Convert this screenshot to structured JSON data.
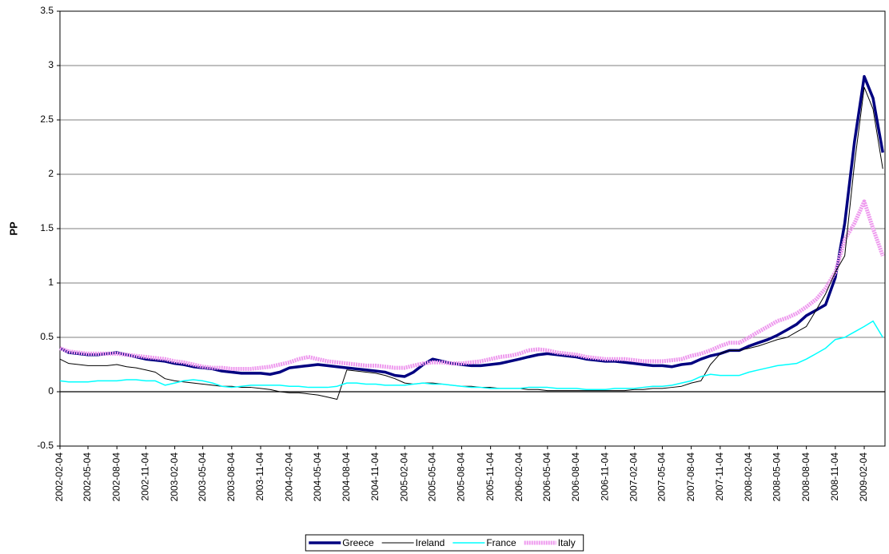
{
  "chart_data": {
    "type": "line",
    "ylabel": "PP",
    "x": [
      "2002-02-04",
      "2002-03-04",
      "2002-04-04",
      "2002-05-04",
      "2002-06-04",
      "2002-07-04",
      "2002-08-04",
      "2002-09-04",
      "2002-10-04",
      "2002-11-04",
      "2002-12-04",
      "2003-01-04",
      "2003-02-04",
      "2003-03-04",
      "2003-04-04",
      "2003-05-04",
      "2003-06-04",
      "2003-07-04",
      "2003-08-04",
      "2003-09-04",
      "2003-10-04",
      "2003-11-04",
      "2003-12-04",
      "2004-01-04",
      "2004-02-04",
      "2004-03-04",
      "2004-04-04",
      "2004-05-04",
      "2004-06-04",
      "2004-07-04",
      "2004-08-04",
      "2004-09-04",
      "2004-10-04",
      "2004-11-04",
      "2004-12-04",
      "2005-01-04",
      "2005-02-04",
      "2005-03-04",
      "2005-04-04",
      "2005-05-04",
      "2005-06-04",
      "2005-07-04",
      "2005-08-04",
      "2005-09-04",
      "2005-10-04",
      "2005-11-04",
      "2005-12-04",
      "2006-01-04",
      "2006-02-04",
      "2006-03-04",
      "2006-04-04",
      "2006-05-04",
      "2006-06-04",
      "2006-07-04",
      "2006-08-04",
      "2006-09-04",
      "2006-10-04",
      "2006-11-04",
      "2006-12-04",
      "2007-01-04",
      "2007-02-04",
      "2007-03-04",
      "2007-04-04",
      "2007-05-04",
      "2007-06-04",
      "2007-07-04",
      "2007-08-04",
      "2007-09-04",
      "2007-10-04",
      "2007-11-04",
      "2007-12-04",
      "2008-01-04",
      "2008-02-04",
      "2008-03-04",
      "2008-04-04",
      "2008-05-04",
      "2008-06-04",
      "2008-07-04",
      "2008-08-04",
      "2008-09-04",
      "2008-10-04",
      "2008-11-04",
      "2008-12-04",
      "2009-01-04",
      "2009-02-04",
      "2009-03-04",
      "2009-04-04"
    ],
    "xlim": [
      "2002-02-04",
      "2009-04-11"
    ],
    "xticks": [
      "2002-02-04",
      "2002-05-04",
      "2002-08-04",
      "2002-11-04",
      "2003-02-04",
      "2003-05-04",
      "2003-08-04",
      "2003-11-04",
      "2004-02-04",
      "2004-05-04",
      "2004-08-04",
      "2004-11-04",
      "2005-02-04",
      "2005-05-04",
      "2005-08-04",
      "2005-11-04",
      "2006-02-04",
      "2006-05-04",
      "2006-08-04",
      "2006-11-04",
      "2007-02-04",
      "2007-05-04",
      "2007-08-04",
      "2007-11-04",
      "2008-02-04",
      "2008-05-04",
      "2008-08-04",
      "2008-11-04",
      "2009-02-04"
    ],
    "ylim": [
      -0.5,
      3.5
    ],
    "yticks": [
      -0.5,
      0,
      0.5,
      1,
      1.5,
      2,
      2.5,
      3,
      3.5
    ],
    "grid": true,
    "legend": "bottom",
    "series": [
      {
        "name": "Greece",
        "color": "#000080",
        "values": [
          0.4,
          0.36,
          0.35,
          0.34,
          0.34,
          0.35,
          0.36,
          0.34,
          0.32,
          0.3,
          0.29,
          0.28,
          0.26,
          0.25,
          0.23,
          0.22,
          0.21,
          0.19,
          0.18,
          0.17,
          0.17,
          0.17,
          0.16,
          0.18,
          0.22,
          0.23,
          0.24,
          0.25,
          0.24,
          0.23,
          0.22,
          0.21,
          0.2,
          0.19,
          0.18,
          0.15,
          0.14,
          0.18,
          0.25,
          0.3,
          0.28,
          0.26,
          0.25,
          0.24,
          0.24,
          0.25,
          0.26,
          0.28,
          0.3,
          0.32,
          0.34,
          0.35,
          0.34,
          0.33,
          0.32,
          0.3,
          0.29,
          0.28,
          0.28,
          0.27,
          0.26,
          0.25,
          0.24,
          0.24,
          0.23,
          0.25,
          0.26,
          0.3,
          0.33,
          0.35,
          0.38,
          0.38,
          0.42,
          0.45,
          0.48,
          0.52,
          0.57,
          0.62,
          0.7,
          0.75,
          0.8,
          1.05,
          1.55,
          2.3,
          2.9,
          2.7,
          2.2
        ]
      },
      {
        "name": "Ireland",
        "color": "#000000",
        "values": [
          0.3,
          0.26,
          0.25,
          0.24,
          0.24,
          0.24,
          0.25,
          0.23,
          0.22,
          0.2,
          0.18,
          0.12,
          0.1,
          0.09,
          0.08,
          0.07,
          0.06,
          0.05,
          0.05,
          0.04,
          0.04,
          0.03,
          0.02,
          0.0,
          -0.01,
          -0.01,
          -0.02,
          -0.03,
          -0.05,
          -0.07,
          0.2,
          0.19,
          0.18,
          0.17,
          0.15,
          0.12,
          0.08,
          0.07,
          0.08,
          0.08,
          0.07,
          0.06,
          0.05,
          0.05,
          0.04,
          0.04,
          0.03,
          0.03,
          0.03,
          0.02,
          0.02,
          0.01,
          0.01,
          0.01,
          0.01,
          0.01,
          0.01,
          0.01,
          0.01,
          0.01,
          0.02,
          0.02,
          0.03,
          0.03,
          0.04,
          0.05,
          0.08,
          0.1,
          0.25,
          0.35,
          0.38,
          0.38,
          0.4,
          0.42,
          0.45,
          0.48,
          0.5,
          0.55,
          0.6,
          0.75,
          0.9,
          1.1,
          1.25,
          2.1,
          2.8,
          2.6,
          2.05
        ]
      },
      {
        "name": "France",
        "color": "#00ffff",
        "values": [
          0.1,
          0.09,
          0.09,
          0.09,
          0.1,
          0.1,
          0.1,
          0.11,
          0.11,
          0.1,
          0.1,
          0.06,
          0.08,
          0.1,
          0.11,
          0.1,
          0.08,
          0.05,
          0.04,
          0.05,
          0.06,
          0.06,
          0.06,
          0.06,
          0.05,
          0.05,
          0.04,
          0.04,
          0.04,
          0.05,
          0.08,
          0.08,
          0.07,
          0.07,
          0.06,
          0.06,
          0.06,
          0.07,
          0.08,
          0.07,
          0.07,
          0.06,
          0.05,
          0.04,
          0.04,
          0.03,
          0.03,
          0.03,
          0.03,
          0.04,
          0.04,
          0.04,
          0.03,
          0.03,
          0.03,
          0.02,
          0.02,
          0.02,
          0.03,
          0.03,
          0.03,
          0.04,
          0.05,
          0.05,
          0.06,
          0.08,
          0.1,
          0.14,
          0.16,
          0.15,
          0.15,
          0.15,
          0.18,
          0.2,
          0.22,
          0.24,
          0.25,
          0.26,
          0.3,
          0.35,
          0.4,
          0.48,
          0.5,
          0.55,
          0.6,
          0.65,
          0.5
        ]
      },
      {
        "name": "Italy",
        "color": "#ee99ee",
        "values": [
          0.4,
          0.37,
          0.36,
          0.35,
          0.35,
          0.35,
          0.35,
          0.34,
          0.33,
          0.32,
          0.31,
          0.3,
          0.28,
          0.27,
          0.25,
          0.23,
          0.22,
          0.22,
          0.21,
          0.21,
          0.21,
          0.22,
          0.23,
          0.25,
          0.27,
          0.3,
          0.32,
          0.3,
          0.28,
          0.27,
          0.26,
          0.25,
          0.24,
          0.24,
          0.23,
          0.22,
          0.22,
          0.24,
          0.26,
          0.27,
          0.27,
          0.26,
          0.26,
          0.27,
          0.28,
          0.3,
          0.32,
          0.33,
          0.35,
          0.38,
          0.39,
          0.38,
          0.36,
          0.35,
          0.34,
          0.32,
          0.31,
          0.3,
          0.3,
          0.3,
          0.29,
          0.28,
          0.28,
          0.28,
          0.29,
          0.3,
          0.33,
          0.35,
          0.38,
          0.42,
          0.45,
          0.45,
          0.5,
          0.55,
          0.6,
          0.65,
          0.68,
          0.72,
          0.78,
          0.85,
          0.95,
          1.1,
          1.4,
          1.55,
          1.75,
          1.5,
          1.25
        ]
      }
    ]
  }
}
